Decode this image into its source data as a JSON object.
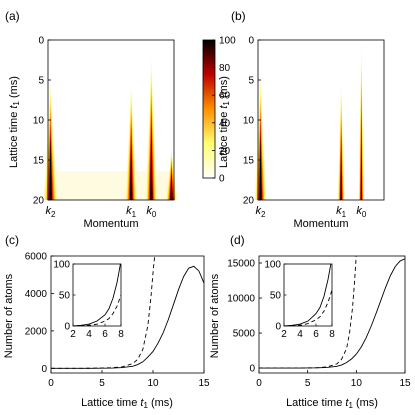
{
  "chart_data": [
    {
      "type": "heatmap",
      "panel_label": "(a)",
      "ylabel": "Lattice time",
      "ylabel_symbol": "t",
      "ylabel_sub": "1",
      "ylabel_unit": " (ms)",
      "xlabel": "Momentum",
      "ylim": [
        0,
        20
      ],
      "yticks": [
        0,
        5,
        10,
        15,
        20
      ],
      "x_tick_labels": [
        {
          "name": "k",
          "sub": "2",
          "pos": 0.02
        },
        {
          "name": "k",
          "sub": "1",
          "pos": 0.66
        },
        {
          "name": "k",
          "sub": "0",
          "pos": 0.82
        }
      ],
      "peaks": [
        {
          "pos": 0.02,
          "onset": 5.3,
          "width": 0.035
        },
        {
          "pos": 0.66,
          "onset": 5.3,
          "width": 0.03
        },
        {
          "pos": 0.82,
          "onset": 2.2,
          "width": 0.03
        },
        {
          "pos": 0.98,
          "onset": 13.5,
          "width": 0.03
        }
      ],
      "colorbar": {
        "ticks": [
          0,
          20,
          40,
          60,
          80,
          100
        ],
        "range": [
          0,
          100
        ]
      }
    },
    {
      "type": "heatmap",
      "panel_label": "(b)",
      "ylabel": "Lattice time",
      "ylabel_symbol": "t",
      "ylabel_sub": "1",
      "ylabel_unit": " (ms)",
      "xlabel": "Momentum",
      "ylim": [
        0,
        20
      ],
      "yticks": [
        0,
        5,
        10,
        15,
        20
      ],
      "x_tick_labels": [
        {
          "name": "k",
          "sub": "2",
          "pos": 0.02
        },
        {
          "name": "k",
          "sub": "1",
          "pos": 0.66
        },
        {
          "name": "k",
          "sub": "0",
          "pos": 0.82
        }
      ],
      "peaks": [
        {
          "pos": 0.02,
          "onset": 4.5,
          "width": 0.03
        },
        {
          "pos": 0.66,
          "onset": 5.0,
          "width": 0.018
        },
        {
          "pos": 0.82,
          "onset": 0.0,
          "width": 0.014
        }
      ]
    },
    {
      "type": "line",
      "panel_label": "(c)",
      "xlabel": "Lattice time",
      "xlabel_symbol": "t",
      "xlabel_sub": "1",
      "xlabel_unit": " (ms)",
      "ylabel": "Number of atoms",
      "xlim": [
        0,
        15
      ],
      "ylim": [
        -250,
        6000
      ],
      "xticks": [
        0,
        5,
        10,
        15
      ],
      "yticks": [
        0,
        2000,
        4000,
        6000
      ],
      "series": [
        {
          "style": "solid",
          "x": [
            0,
            2,
            4,
            6,
            7,
            8,
            8.5,
            9,
            9.5,
            10,
            10.5,
            11,
            11.5,
            12,
            12.5,
            13,
            13.5,
            14,
            14.5,
            15
          ],
          "y": [
            0,
            0,
            2,
            15,
            40,
            110,
            200,
            350,
            600,
            900,
            1350,
            1900,
            2600,
            3400,
            4200,
            4900,
            5350,
            5450,
            5200,
            4550
          ]
        },
        {
          "style": "dashed",
          "x": [
            0,
            2,
            4,
            6,
            7,
            8,
            8.5,
            9,
            9.5,
            9.8,
            10.0,
            10.2
          ],
          "y": [
            0,
            0,
            5,
            30,
            80,
            250,
            480,
            1000,
            2300,
            3800,
            5100,
            6200
          ]
        }
      ],
      "inset": {
        "xlim": [
          2,
          8
        ],
        "ylim": [
          0,
          100
        ],
        "xticks": [
          2,
          4,
          6,
          8
        ],
        "yticks": [
          0,
          50,
          100
        ],
        "series": [
          {
            "style": "solid",
            "x": [
              2,
              3,
              4,
              5,
              6,
              6.5,
              7,
              7.5,
              8
            ],
            "y": [
              0,
              1,
              3,
              8,
              18,
              28,
              45,
              70,
              105
            ]
          },
          {
            "style": "dashed",
            "x": [
              2,
              3,
              4,
              5,
              6,
              6.5,
              7,
              7.5,
              8
            ],
            "y": [
              0,
              0,
              1,
              3,
              8,
              12,
              20,
              32,
              50
            ]
          }
        ]
      }
    },
    {
      "type": "line",
      "panel_label": "(d)",
      "xlabel": "Lattice time",
      "xlabel_symbol": "t",
      "xlabel_sub": "1",
      "xlabel_unit": " (ms)",
      "ylabel": "Number of atoms",
      "xlim": [
        0,
        15
      ],
      "ylim": [
        -700,
        16000
      ],
      "xticks": [
        0,
        5,
        10,
        15
      ],
      "yticks": [
        0,
        5000,
        10000,
        15000
      ],
      "series": [
        {
          "style": "solid",
          "x": [
            0,
            2,
            4,
            6,
            7,
            8,
            8.5,
            9,
            9.5,
            10,
            10.5,
            11,
            11.5,
            12,
            12.5,
            13,
            13.5,
            14,
            14.5,
            15
          ],
          "y": [
            0,
            0,
            5,
            40,
            100,
            250,
            450,
            800,
            1300,
            2000,
            3000,
            4300,
            5900,
            7700,
            9600,
            11500,
            13200,
            14500,
            15300,
            15600
          ]
        },
        {
          "style": "dashed",
          "x": [
            0,
            2,
            4,
            6,
            7,
            8,
            8.5,
            9,
            9.3,
            9.6,
            9.8,
            10.0
          ],
          "y": [
            0,
            0,
            8,
            60,
            180,
            600,
            1300,
            2800,
            5000,
            8500,
            12000,
            16200
          ]
        }
      ],
      "inset": {
        "xlim": [
          2,
          8
        ],
        "ylim": [
          0,
          100
        ],
        "xticks": [
          2,
          4,
          6,
          8
        ],
        "yticks": [
          0,
          50,
          100
        ],
        "series": [
          {
            "style": "solid",
            "x": [
              2,
              3,
              4,
              5,
              6,
              6.5,
              7,
              7.5,
              8
            ],
            "y": [
              0,
              1,
              3,
              8,
              20,
              30,
              48,
              75,
              110
            ]
          },
          {
            "style": "dashed",
            "x": [
              2,
              3,
              4,
              5,
              6,
              6.5,
              7,
              7.5,
              8
            ],
            "y": [
              0,
              0,
              1,
              4,
              10,
              15,
              24,
              38,
              58
            ]
          }
        ]
      }
    }
  ]
}
